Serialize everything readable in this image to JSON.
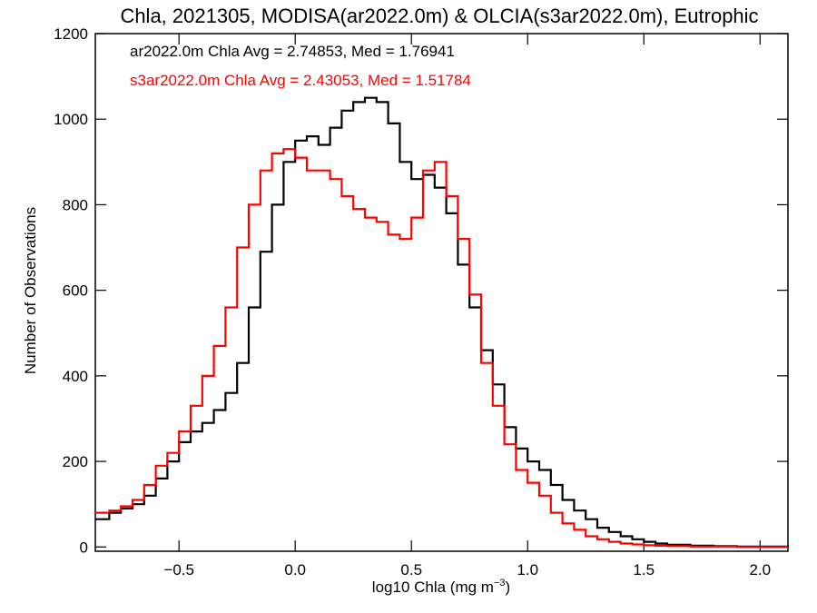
{
  "chart_data": {
    "type": "line",
    "title": "Chla, 2021305, MODISA(ar2022.0m) & OLCIA(s3ar2022.0m), Eutrophic",
    "xlabel_main": "log10 Chla (mg m",
    "xlabel_exp": "−3",
    "xlabel_close": ")",
    "ylabel": "Number of Observations",
    "xlim": [
      -0.86,
      2.12
    ],
    "ylim": [
      -10,
      1200
    ],
    "xticks": [
      {
        "v": -0.5,
        "label": "−0.5"
      },
      {
        "v": 0.0,
        "label": "0.0"
      },
      {
        "v": 0.5,
        "label": "0.5"
      },
      {
        "v": 1.0,
        "label": "1.0"
      },
      {
        "v": 1.5,
        "label": "1.5"
      },
      {
        "v": 2.0,
        "label": "2.0"
      }
    ],
    "yticks": [
      {
        "v": 0,
        "label": "0"
      },
      {
        "v": 200,
        "label": "200"
      },
      {
        "v": 400,
        "label": "400"
      },
      {
        "v": 600,
        "label": "600"
      },
      {
        "v": 800,
        "label": "800"
      },
      {
        "v": 1000,
        "label": "1000"
      },
      {
        "v": 1200,
        "label": "1200"
      }
    ],
    "grid": false,
    "legend_position": "top-left",
    "series": [
      {
        "name": "ar2022.0m Chla Avg = 2.74853, Med = 1.76941",
        "color": "#000000",
        "x": [
          -0.86,
          -0.8,
          -0.75,
          -0.7,
          -0.65,
          -0.6,
          -0.55,
          -0.5,
          -0.45,
          -0.4,
          -0.35,
          -0.3,
          -0.25,
          -0.2,
          -0.15,
          -0.1,
          -0.05,
          0.0,
          0.05,
          0.1,
          0.15,
          0.2,
          0.25,
          0.3,
          0.35,
          0.4,
          0.45,
          0.5,
          0.55,
          0.6,
          0.65,
          0.7,
          0.75,
          0.8,
          0.85,
          0.9,
          0.95,
          1.0,
          1.05,
          1.1,
          1.15,
          1.2,
          1.25,
          1.3,
          1.35,
          1.4,
          1.45,
          1.5,
          1.55,
          1.6,
          1.7,
          1.8,
          1.9,
          2.0,
          2.12
        ],
        "y": [
          65,
          80,
          90,
          100,
          120,
          160,
          200,
          245,
          270,
          290,
          320,
          360,
          430,
          560,
          690,
          800,
          900,
          950,
          960,
          940,
          980,
          1020,
          1040,
          1050,
          1040,
          990,
          900,
          860,
          870,
          840,
          780,
          660,
          560,
          460,
          380,
          280,
          230,
          200,
          180,
          145,
          110,
          85,
          65,
          45,
          35,
          25,
          18,
          12,
          8,
          5,
          3,
          2,
          1,
          1,
          0
        ]
      },
      {
        "name": "s3ar2022.0m Chla Avg = 2.43053, Med = 1.51784",
        "color": "#ff0000",
        "x": [
          -0.86,
          -0.8,
          -0.75,
          -0.7,
          -0.65,
          -0.6,
          -0.55,
          -0.5,
          -0.45,
          -0.4,
          -0.35,
          -0.3,
          -0.25,
          -0.2,
          -0.15,
          -0.1,
          -0.05,
          0.0,
          0.05,
          0.1,
          0.15,
          0.2,
          0.25,
          0.3,
          0.35,
          0.4,
          0.45,
          0.5,
          0.55,
          0.6,
          0.65,
          0.7,
          0.75,
          0.8,
          0.85,
          0.9,
          0.95,
          1.0,
          1.05,
          1.1,
          1.15,
          1.2,
          1.25,
          1.3,
          1.35,
          1.4,
          1.45,
          1.5,
          1.55,
          1.6,
          1.7,
          1.8,
          1.9,
          2.0,
          2.12
        ],
        "y": [
          80,
          85,
          95,
          110,
          145,
          190,
          220,
          270,
          330,
          400,
          470,
          560,
          700,
          800,
          880,
          920,
          930,
          910,
          880,
          880,
          860,
          820,
          790,
          770,
          760,
          730,
          720,
          770,
          880,
          900,
          820,
          720,
          590,
          430,
          330,
          240,
          180,
          150,
          120,
          80,
          55,
          40,
          25,
          18,
          12,
          8,
          6,
          4,
          3,
          2,
          1,
          1,
          0,
          0,
          0
        ]
      }
    ]
  }
}
